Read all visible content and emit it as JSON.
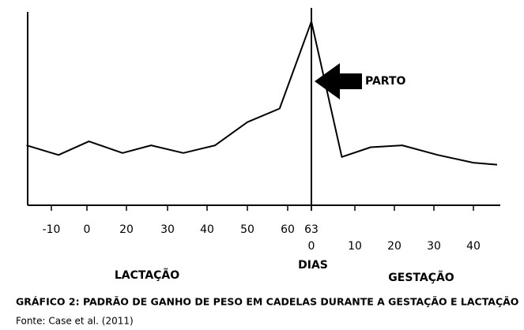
{
  "chart_data": {
    "type": "line",
    "title": "GRÁFICO 2: PADRÃO DE GANHO DE PESO EM CADELAS DURANTE A GESTAÇÃO E LACTAÇÃO",
    "source": "Fonte: Case et al. (2011)",
    "annotation": "PARTO",
    "x_label": "DIAS",
    "color": "#000000",
    "ylim": [
      0,
      100
    ],
    "xticks": [
      -10,
      0,
      20,
      30,
      40,
      50,
      60,
      63
    ],
    "x2ticks": [
      0,
      10,
      20,
      30,
      40
    ],
    "series": [
      {
        "name": "LACTAÇÃO",
        "axis": "x",
        "x": [
          -17,
          -8,
          1,
          18,
          26,
          34,
          42,
          50,
          58,
          63
        ],
        "values": [
          31,
          26,
          33,
          27,
          31,
          27,
          31,
          43,
          50,
          95
        ]
      },
      {
        "name": "GESTAÇÃO",
        "axis": "x2",
        "x": [
          0,
          7,
          14,
          22,
          31,
          40,
          46
        ],
        "values": [
          95,
          25,
          30,
          31,
          26,
          22,
          21
        ]
      }
    ]
  }
}
